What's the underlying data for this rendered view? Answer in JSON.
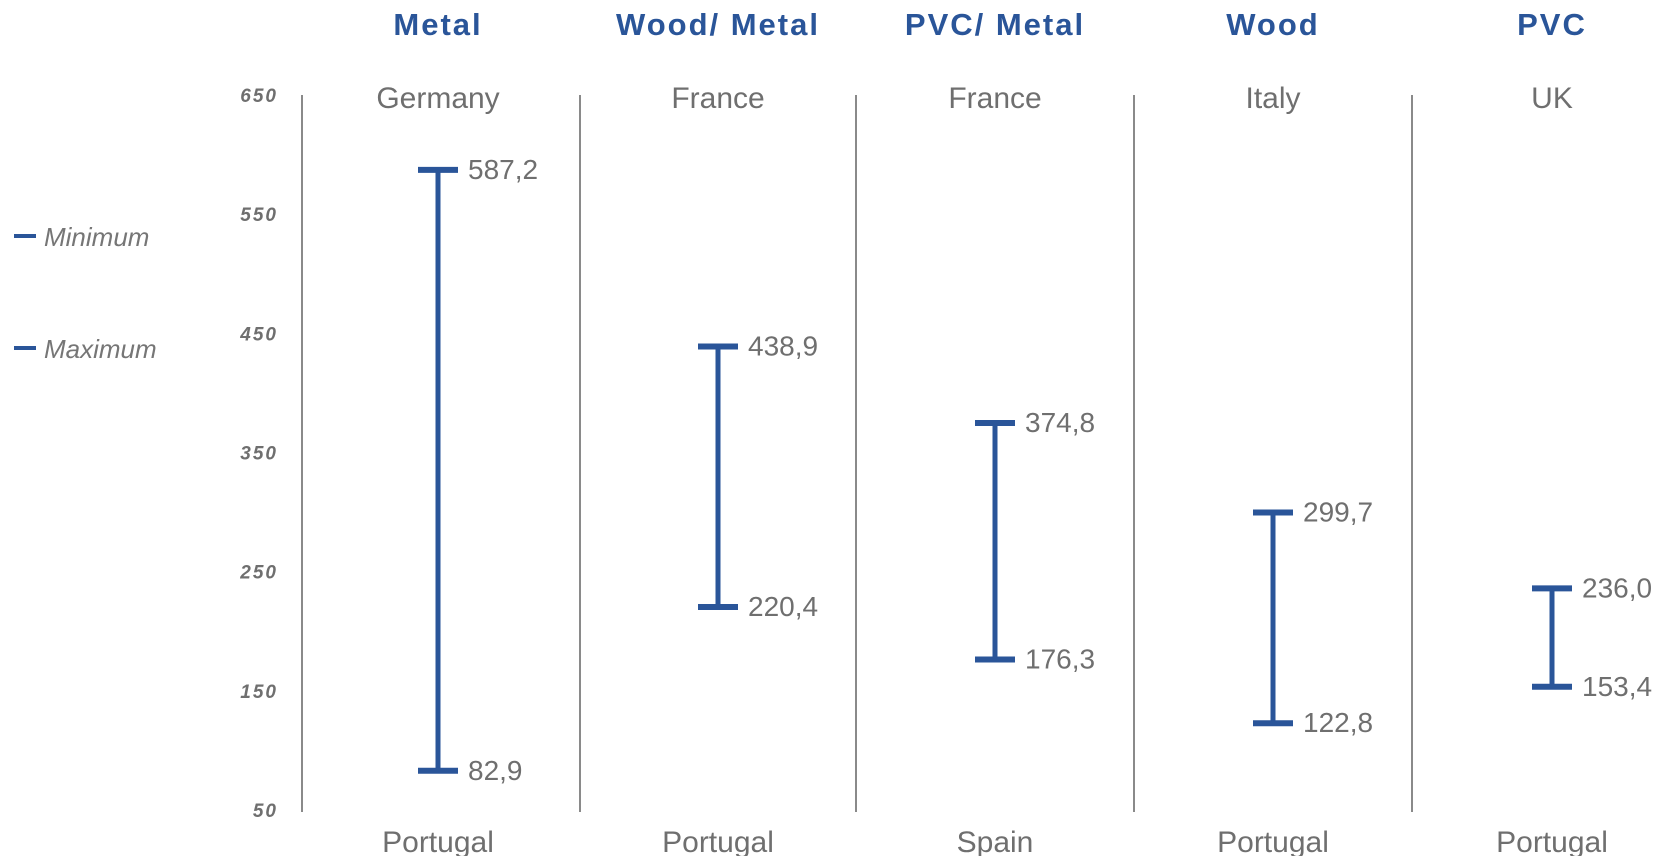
{
  "chart_data": {
    "type": "range",
    "y_ticks": [
      "650",
      "550",
      "450",
      "350",
      "250",
      "150",
      "50"
    ],
    "ylim": [
      50,
      650
    ],
    "legend": {
      "placement": "left",
      "items": [
        {
          "key": "min",
          "label": "Minimum"
        },
        {
          "key": "max",
          "label": "Maximum"
        }
      ]
    },
    "categories": [
      {
        "title": "Metal",
        "top_country": "Germany",
        "bottom_country": "Portugal",
        "max": 587.2,
        "min": 82.9,
        "max_label": "587,2",
        "min_label": "82,9"
      },
      {
        "title": "Wood/ Metal",
        "top_country": "France",
        "bottom_country": "Portugal",
        "max": 438.9,
        "min": 220.4,
        "max_label": "438,9",
        "min_label": "220,4"
      },
      {
        "title": "PVC/ Metal",
        "top_country": "France",
        "bottom_country": "Spain",
        "max": 374.8,
        "min": 176.3,
        "max_label": "374,8",
        "min_label": "176,3"
      },
      {
        "title": "Wood",
        "top_country": "Italy",
        "bottom_country": "Portugal",
        "max": 299.7,
        "min": 122.8,
        "max_label": "299,7",
        "min_label": "122,8"
      },
      {
        "title": "PVC",
        "top_country": "UK",
        "bottom_country": "Portugal",
        "max": 236.0,
        "min": 153.4,
        "max_label": "236,0",
        "min_label": "153,4"
      }
    ]
  },
  "colors": {
    "accent": "#2a5599",
    "divider": "#8a8a8a",
    "text": "#6f6f6f"
  }
}
